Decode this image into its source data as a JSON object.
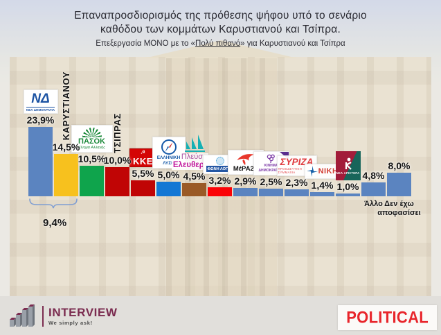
{
  "title": {
    "line1": "Επαναπροσδιορισμός της πρόθεσης ψήφου υπό το σενάριο",
    "line2": "καθόδου των κομμάτων Καρυστιανού και Τσίπρα.",
    "subtitle_prefix": "Επεξεργασία ΜΟΝΟ με το «",
    "subtitle_emph": "Πολύ πιθανό",
    "subtitle_suffix": "» για Καρυστιανού και Τσίπρα"
  },
  "chart_data": {
    "type": "bar",
    "title": "Επαναπροσδιορισμός της πρόθεσης ψήφου υπό το σενάριο καθόδου των κομμάτων Καρυστιανού και Τσίπρα.",
    "subtitle": "Επεξεργασία ΜΟΝΟ με το «Πολύ πιθανό» για Καρυστιανού και Τσίπρα",
    "unit": "%",
    "ylim": [
      0,
      26
    ],
    "grid": false,
    "legend": "none",
    "categories": [
      "ΝΕΑ ΔΗΜΟΚΡΑΤΙΑ",
      "ΚΑΡΥΣΤΙΑΝΟΥ",
      "ΠΑΣΟΚ",
      "ΤΣΙΠΡΑΣ",
      "ΚΚΕ",
      "ΕΛΛΗΝΙΚΗ ΛΥΣΗ",
      "ΠΛΕΥΣΗ ΕΛΕΥΘΕΡΙΑΣ",
      "ΦΩΝΗ ΛΟΓΙΚΗΣ",
      "ΜέΡΑ25",
      "ΚΙΝΗΜΑ ΔΗΜΟΚΡΑΤΙΑΣ",
      "ΣΥΡΙΖΑ",
      "ΝΙΚΗ",
      "ΝΕΑ ΑΡΙΣΤΕΡΑ",
      "Άλλο",
      "Δεν έχω αποφασίσει"
    ],
    "values": [
      23.9,
      14.5,
      10.5,
      10.0,
      5.5,
      5.0,
      4.5,
      3.2,
      2.9,
      2.5,
      2.3,
      1.4,
      1.0,
      4.8,
      8.0
    ],
    "display_values": [
      "23,9%",
      "14,5%",
      "10,5%",
      "10,0%",
      "5,5%",
      "5,0%",
      "4,5%",
      "3,2%",
      "2,9%",
      "2,5%",
      "2,3%",
      "1,4%",
      "1,0%",
      "4,8%",
      "8,0%"
    ],
    "bar_colors": [
      "#5b84c0",
      "#f7c11e",
      "#0fa44c",
      "#c00505",
      "#c00505",
      "#1377d4",
      "#9a5a26",
      "#fb0307",
      "#5b84c0",
      "#5b84c0",
      "#5b84c0",
      "#5b84c0",
      "#5b84c0",
      "#5b84c0",
      "#5b84c0"
    ],
    "annotation": {
      "text": "9,4%",
      "from_bar": 0,
      "to_bar": 1
    }
  },
  "logos": {
    "nd": {
      "main": "ΝΔ",
      "sub": "ΝΕΑ ΔΗΜΟΚΡΑΤΙΑ"
    },
    "pasok": {
      "main": "ΠΑΣΟΚ",
      "sub": "Κίνημα Αλλαγής"
    },
    "kke": {
      "main": "ΚΚΕ"
    },
    "elliniki_lysi": {
      "line1": "ΕΛΛΗΝΙΚΗ",
      "line2": "ΛΥΣΗ"
    },
    "plefsi": {
      "line1": "Πλεύση",
      "line2": "Ελευθερίας"
    },
    "foni_logikis": {
      "main": "ΦΩΝΗ ΛΟΓΙΚΗΣ"
    },
    "mera25": {
      "main": "ΜέΡΑ25"
    },
    "kinima_dimokratias": {
      "line1": "ΚΙΝΗΜΑ",
      "line2": "ΔΗΜΟΚΡΑΤΙΑΣ"
    },
    "syriza": {
      "main": "ΣΥΡΙΖΑ",
      "sub": "ΠΡΟΟΔΕΥΤΙΚΗ ΣΥΜΜΑΧΙΑ"
    },
    "niki": {
      "main": "ΝΙΚΗ"
    },
    "nea_aristera": {
      "main": "ΝΕΑ ΑΡΙΣΤΕΡΑ"
    }
  },
  "footer": {
    "interview_name": "INTERVIEW",
    "interview_tagline": "We simply ask!",
    "political_name": "POLITICAL"
  },
  "colors": {
    "default_bar_blue": "#5b84c0",
    "interview_maroon": "#7b2c50",
    "political_red": "#e8252b",
    "brace_blue": "#7f9ed2"
  }
}
